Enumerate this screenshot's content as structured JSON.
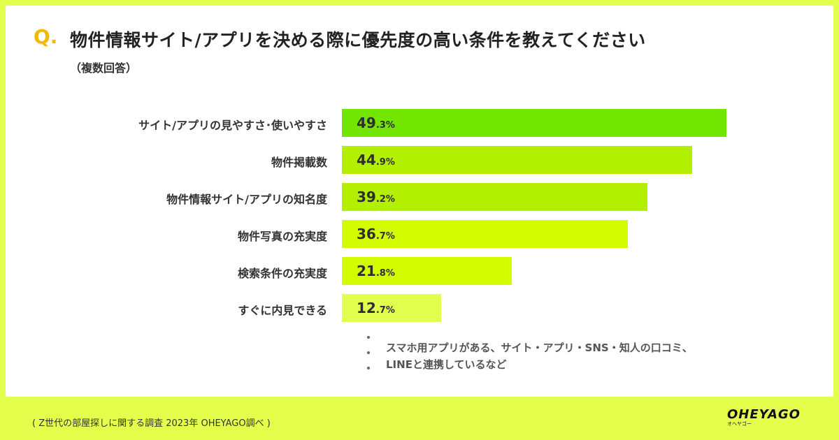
{
  "header": {
    "q_mark": "Q.",
    "title": "物件情報サイト/アプリを決める際に優先度の高い条件を教えてください",
    "subtitle": "（複数回答）"
  },
  "chart_data": {
    "type": "bar",
    "orientation": "horizontal",
    "title": "物件情報サイト/アプリを決める際に優先度の高い条件を教えてください",
    "subtitle": "（複数回答）",
    "unit": "%",
    "categories": [
      "サイト/アプリの見やすさ･使いやすさ",
      "物件掲載数",
      "物件情報サイト/アプリの知名度",
      "物件写真の充実度",
      "検索条件の充実度",
      "すぐに内見できる"
    ],
    "values": [
      49.3,
      44.9,
      39.2,
      36.7,
      21.8,
      12.7
    ],
    "value_int": [
      "49",
      "44",
      "39",
      "36",
      "21",
      "12"
    ],
    "value_dec": [
      ".3%",
      ".9%",
      ".2%",
      ".7%",
      ".8%",
      ".7%"
    ],
    "colors": [
      "#72e600",
      "#b2f000",
      "#b2f000",
      "#d4fc00",
      "#d4fc00",
      "#e2ff50"
    ],
    "xlim": [
      0,
      50
    ],
    "grid": false
  },
  "notes": {
    "lines": [
      "スマホ用アプリがある、サイト・アプリ・SNS・知人の口コミ、",
      "LINEと連携しているなど"
    ]
  },
  "footer": {
    "source": "( Z世代の部屋探しに関する調査 2023年 OHEYAGO調べ )",
    "logo": "OHEYAGO",
    "logo_kana": "オヘヤゴー"
  }
}
